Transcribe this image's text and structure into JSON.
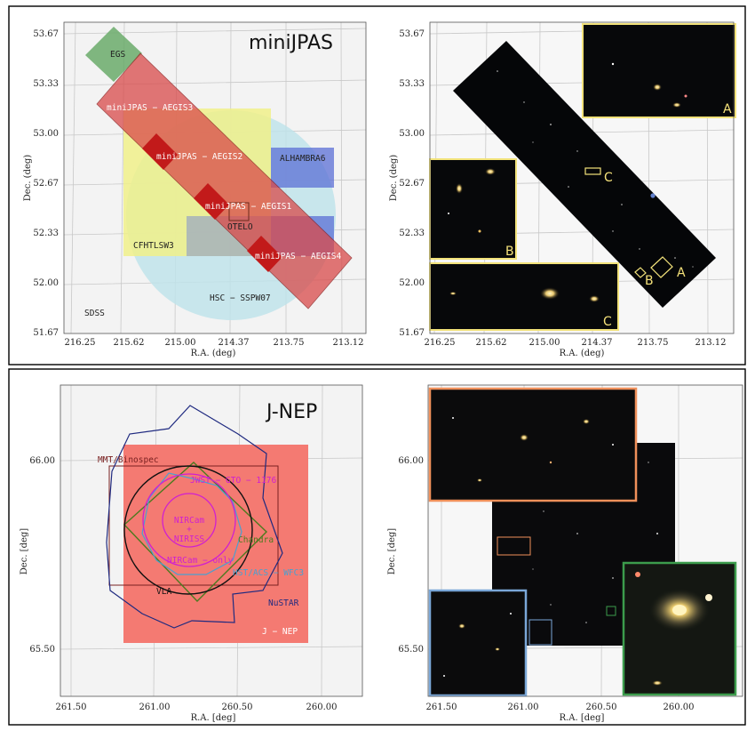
{
  "top_panel": {
    "title": "miniJPAS",
    "xlabel": "R.A. (deg)",
    "ylabel": "Dec. (deg)",
    "x_ticks": [
      "216.25",
      "215.62",
      "215.00",
      "214.37",
      "213.75",
      "213.12"
    ],
    "y_ticks": [
      "53.67",
      "53.33",
      "53.00",
      "52.67",
      "52.33",
      "52.00",
      "51.67"
    ],
    "labels": {
      "egs": "EGS",
      "aegis3": "miniJPAS − AEGIS3",
      "aegis2": "miniJPAS − AEGIS2",
      "aegis1": "miniJPAS − AEGIS1",
      "aegis4": "miniJPAS − AEGIS4",
      "alhambra": "ALHAMBRA6",
      "othelo": "OTELO",
      "cfhtls": "CFHTLSW3",
      "hsc": "HSC − SSPW07",
      "sdss": "SDSS"
    },
    "inset_letters": [
      "A",
      "B",
      "C"
    ],
    "colors": {
      "egs": "#6aaa6a",
      "aegis": "#d94a4a",
      "alhambra": "#5b6fd6",
      "cfhtls": "#f0f08a",
      "hsc": "#bfe3ea",
      "inset_border": "#f2e27a"
    }
  },
  "bottom_panel": {
    "title": "J-NEP",
    "xlabel": "R.A. [deg]",
    "ylabel": "Dec. [deg]",
    "x_ticks": [
      "261.50",
      "261.00",
      "260.50",
      "260.00"
    ],
    "y_ticks": [
      "66.00",
      "65.50"
    ],
    "labels": {
      "mmt": "MMT/Binospec",
      "jwst": "JWST − GTO − 1176",
      "nircam_niriss": [
        "NIRCam",
        "+",
        "NIRISS"
      ],
      "chandra": "Chandra",
      "nircam_only": "NIRCam − only",
      "hst": "HST/ACS − WFC3",
      "vla": "VLA",
      "nustar": "NuSTAR",
      "jnep": "J − NEP"
    },
    "colors": {
      "jnep": "#f47a72",
      "nustar": "#1f2a80",
      "chandra": "#4d7a1f",
      "jwst": "#d020d0",
      "hst": "#4aa0d0",
      "vla": "#111111",
      "mmt": "#7a2020",
      "inset_orange": "#f0905a",
      "inset_blue": "#7aa7d8",
      "inset_green": "#3c9c4c"
    }
  }
}
